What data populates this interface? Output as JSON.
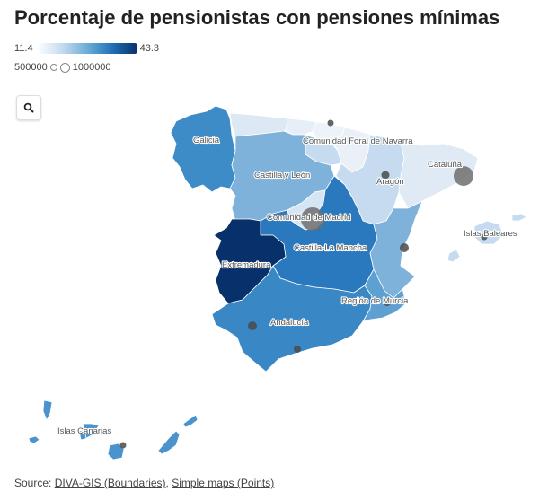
{
  "title": "Porcentaje de pensionistas con pensiones mínimas",
  "legend": {
    "color_min": "11.4",
    "color_max": "43.3",
    "size_min": "500000",
    "size_max": "1000000",
    "color_scale": [
      "#ffffff",
      "#c6dbef",
      "#6baed6",
      "#2171b5",
      "#08306b"
    ]
  },
  "controls": {
    "search_icon": "search-icon"
  },
  "regions": [
    {
      "name": "Galicia",
      "label": "Galicia",
      "color": "#3d8cc8"
    },
    {
      "name": "Principado de Asturias",
      "label": "",
      "color": "#dce8f4"
    },
    {
      "name": "Cantabria",
      "label": "",
      "color": "#e6eef7"
    },
    {
      "name": "País Vasco",
      "label": "",
      "color": "#eef3fa"
    },
    {
      "name": "Comunidad Foral de Navarra",
      "label": "Comunidad Foral de Navarra",
      "color": "#e9f0f8"
    },
    {
      "name": "La Rioja",
      "label": "",
      "color": "#c6dbef"
    },
    {
      "name": "Castilla y León",
      "label": "Castilla y León",
      "color": "#7fb2da"
    },
    {
      "name": "Aragón",
      "label": "Aragón",
      "color": "#c6dbef"
    },
    {
      "name": "Cataluña",
      "label": "Cataluña",
      "color": "#dfeaf5"
    },
    {
      "name": "Comunidad de Madrid",
      "label": "Comunidad de Madrid",
      "color": "#d6e5f3"
    },
    {
      "name": "Castilla-La Mancha",
      "label": "Castilla-La Mancha",
      "color": "#2a78bd"
    },
    {
      "name": "Comunitat Valenciana",
      "label": "",
      "color": "#7fb2da"
    },
    {
      "name": "Extremadura",
      "label": "Extremadura",
      "color": "#08306b"
    },
    {
      "name": "Andalucía",
      "label": "Andalucía",
      "color": "#3a87c6"
    },
    {
      "name": "Región de Murcia",
      "label": "Región de Murcia",
      "color": "#5fa0d2"
    },
    {
      "name": "Islas Baleares",
      "label": "Islas Baleares",
      "color": "#c6dbef"
    },
    {
      "name": "Islas Canarias",
      "label": "Islas Canarias",
      "color": "#4a93cc"
    }
  ],
  "cities": [
    {
      "name": "Madrid",
      "size": "large"
    },
    {
      "name": "Barcelona",
      "size": "large"
    },
    {
      "name": "Valencia",
      "size": "small"
    },
    {
      "name": "Sevilla",
      "size": "small"
    },
    {
      "name": "Zaragoza",
      "size": "small"
    },
    {
      "name": "Málaga",
      "size": "small"
    },
    {
      "name": "Murcia",
      "size": "small"
    },
    {
      "name": "Palma",
      "size": "small"
    },
    {
      "name": "Las Palmas",
      "size": "small"
    },
    {
      "name": "Bilbao",
      "size": "small"
    }
  ],
  "source": {
    "prefix": "Source: ",
    "link1": "DIVA-GIS (Boundaries)",
    "separator": ", ",
    "link2": "Simple maps (Points)"
  }
}
